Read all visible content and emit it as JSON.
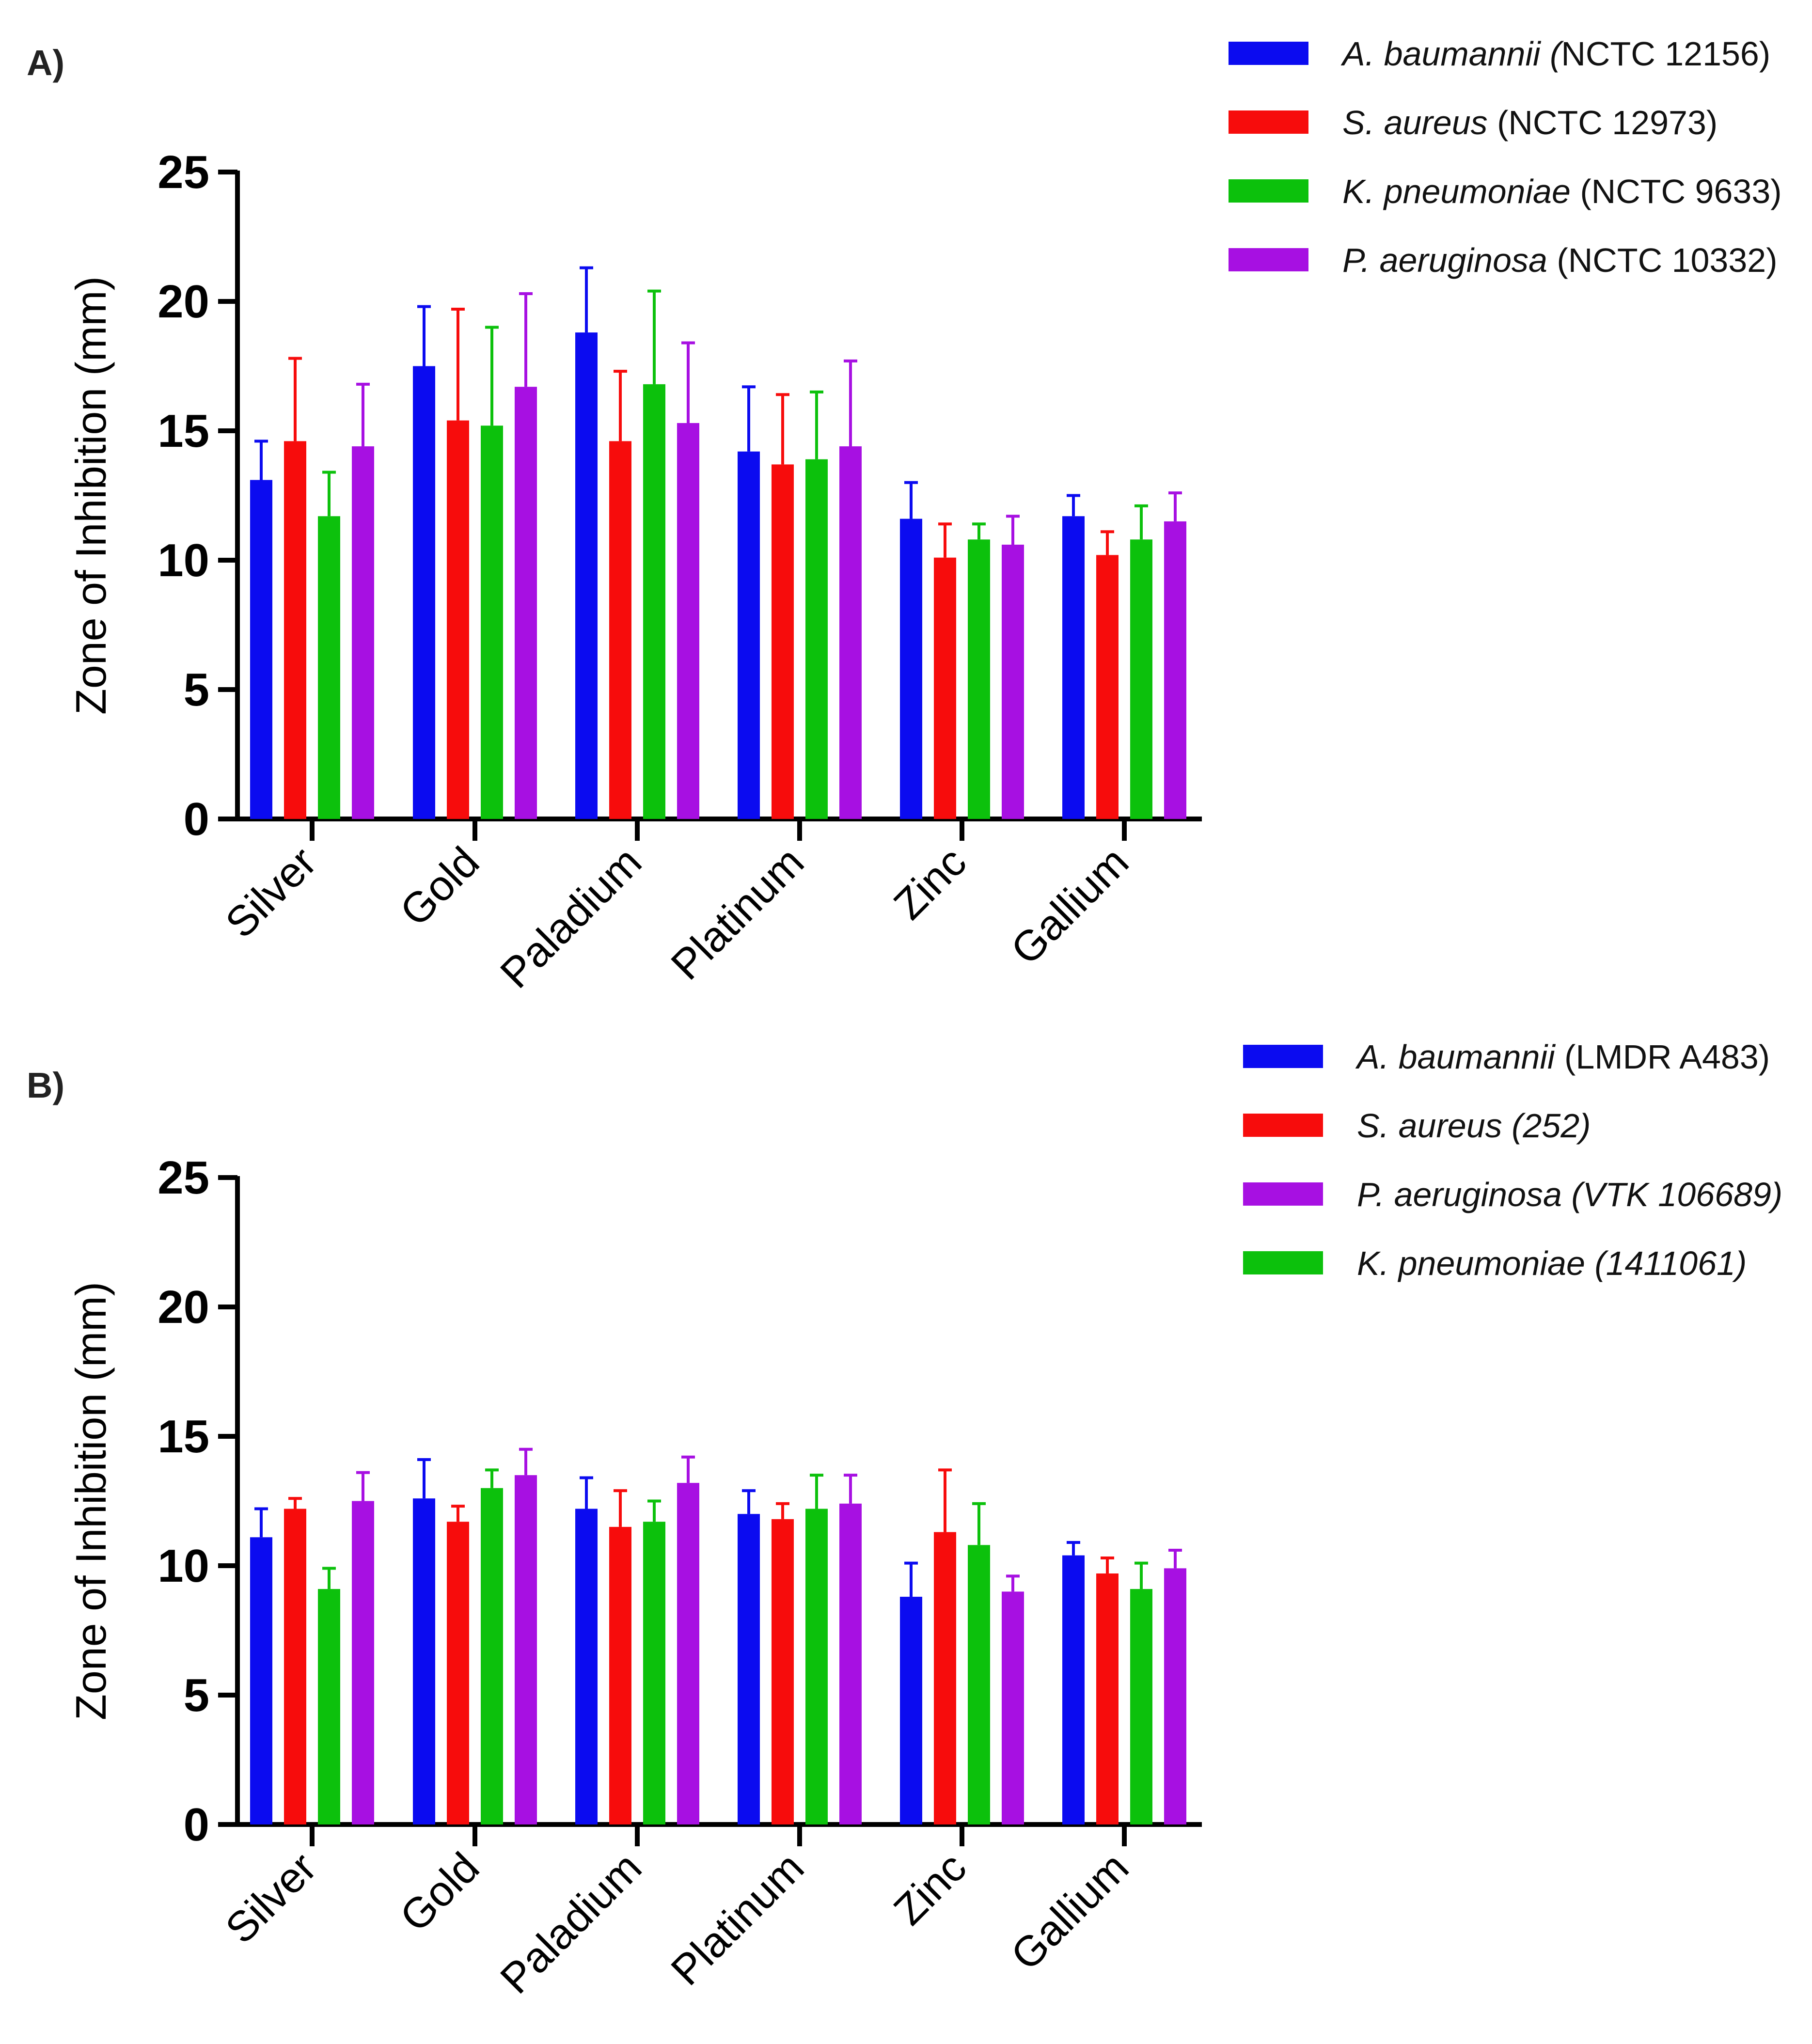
{
  "chart_data": [
    {
      "panel_label": "A)",
      "type": "bar",
      "ylabel": "Zone of Inhibition (mm)",
      "xlabel": "",
      "ylim": [
        0,
        25
      ],
      "yticks": [
        "0",
        "5",
        "10",
        "15",
        "20",
        "25"
      ],
      "categories": [
        "Silver",
        "Gold",
        "Paladium",
        "Platinum",
        "Zinc",
        "Gallium"
      ],
      "series": [
        {
          "name_italic": "A. baumannii (",
          "name_rest": "NCTC 12156)",
          "color": "#0b0bf0",
          "values": [
            13.1,
            17.5,
            18.8,
            14.2,
            11.6,
            11.7
          ],
          "errors": [
            1.5,
            2.3,
            2.5,
            2.5,
            1.4,
            0.8
          ]
        },
        {
          "name_italic": "S. aureus",
          "name_rest": " (NCTC 12973)",
          "color": "#f70c0c",
          "values": [
            14.6,
            15.4,
            14.6,
            13.7,
            10.1,
            10.2
          ],
          "errors": [
            3.2,
            4.3,
            2.7,
            2.7,
            1.3,
            0.9
          ]
        },
        {
          "name_italic": "K. pneumoniae",
          "name_rest": " (NCTC 9633)",
          "color": "#0cc10c",
          "values": [
            11.7,
            15.2,
            16.8,
            13.9,
            10.8,
            10.8
          ],
          "errors": [
            1.7,
            3.8,
            3.6,
            2.6,
            0.6,
            1.3
          ]
        },
        {
          "name_italic": "P. aeruginosa",
          "name_rest": " (NCTC 10332)",
          "color": "#a710e2",
          "values": [
            14.4,
            16.7,
            15.3,
            14.4,
            10.6,
            11.5
          ],
          "errors": [
            2.4,
            3.6,
            3.1,
            3.3,
            1.1,
            1.1
          ]
        }
      ]
    },
    {
      "panel_label": "B)",
      "type": "bar",
      "ylabel": "Zone of Inhibition (mm)",
      "xlabel": "",
      "ylim": [
        0,
        25
      ],
      "yticks": [
        "0",
        "5",
        "10",
        "15",
        "20",
        "25"
      ],
      "categories": [
        "Silver",
        "Gold",
        "Paladium",
        "Platinum",
        "Zinc",
        "Gallium"
      ],
      "series": [
        {
          "name_italic": "A. baumannii",
          "name_rest": " (LMDR A483)",
          "color": "#0b0bf0",
          "values": [
            11.1,
            12.6,
            12.2,
            12.0,
            8.8,
            10.4
          ],
          "errors": [
            1.1,
            1.5,
            1.2,
            0.9,
            1.3,
            0.5
          ]
        },
        {
          "name_italic": "S. aureus (252)",
          "name_rest": "",
          "color": "#f70c0c",
          "values": [
            12.2,
            11.7,
            11.5,
            11.8,
            11.3,
            9.7
          ],
          "errors": [
            0.4,
            0.6,
            1.4,
            0.6,
            2.4,
            0.6
          ]
        },
        {
          "name_italic": "K. pneumoniae (1411061)",
          "name_rest": "",
          "color": "#0cc10c",
          "values": [
            9.1,
            13.0,
            11.7,
            12.2,
            10.8,
            9.1
          ],
          "errors": [
            0.8,
            0.7,
            0.8,
            1.3,
            1.6,
            1.0
          ]
        },
        {
          "name_italic": "P. aeruginosa (VTK 106689)",
          "name_rest": "",
          "color": "#a710e2",
          "values": [
            12.5,
            13.5,
            13.2,
            12.4,
            9.0,
            9.9
          ],
          "errors": [
            1.1,
            1.0,
            1.0,
            1.1,
            0.6,
            0.7
          ]
        }
      ],
      "legend_order": [
        0,
        1,
        3,
        2
      ]
    }
  ]
}
